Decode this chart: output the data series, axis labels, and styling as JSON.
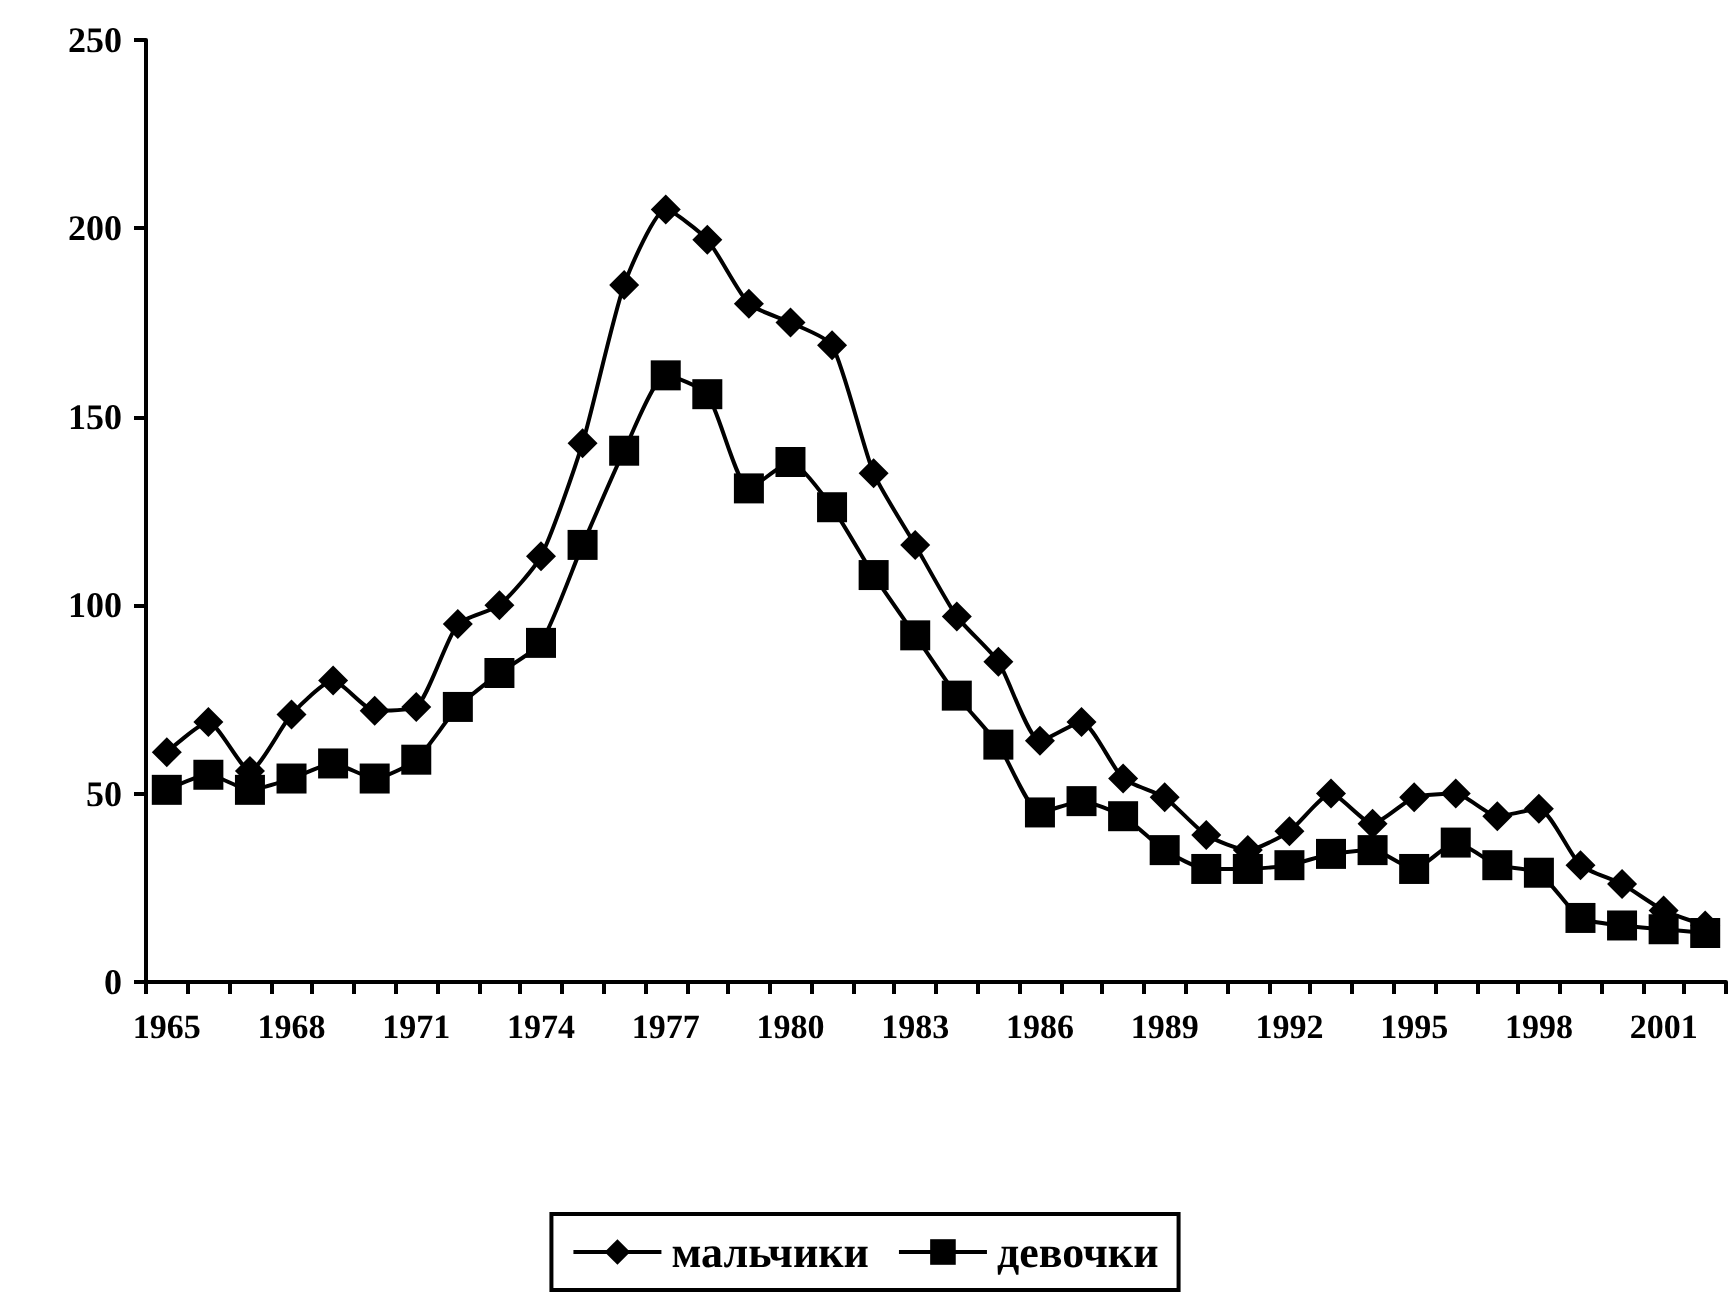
{
  "chart_data": {
    "type": "line",
    "categories": [
      "1965",
      null,
      null,
      "1968",
      null,
      null,
      "1971",
      null,
      null,
      "1974",
      null,
      null,
      "1977",
      null,
      null,
      "1980",
      null,
      null,
      "1983",
      null,
      null,
      "1986",
      null,
      null,
      "1989",
      null,
      null,
      "1992",
      null,
      null,
      "1995",
      null,
      null,
      "1998",
      null,
      null,
      "2001",
      null
    ],
    "series": [
      {
        "name": "мальчики",
        "color": "#000000",
        "marker": "diamond",
        "values": [
          61,
          69,
          56,
          71,
          80,
          72,
          73,
          95,
          100,
          113,
          143,
          185,
          205,
          197,
          180,
          175,
          169,
          135,
          116,
          97,
          85,
          64,
          69,
          54,
          49,
          39,
          35,
          40,
          50,
          42,
          49,
          50,
          44,
          46,
          31,
          26,
          19,
          15
        ]
      },
      {
        "name": "девочки",
        "color": "#000000",
        "marker": "square",
        "values": [
          51,
          55,
          51,
          54,
          58,
          54,
          59,
          73,
          82,
          90,
          116,
          141,
          161,
          156,
          131,
          138,
          126,
          108,
          92,
          76,
          63,
          45,
          48,
          44,
          35,
          30,
          30,
          31,
          34,
          35,
          30,
          37,
          31,
          29,
          17,
          15,
          14,
          13
        ]
      }
    ],
    "ylim": [
      0,
      250
    ],
    "yticks": [
      0,
      50,
      100,
      150,
      200,
      250
    ],
    "grid": false,
    "legend": "bottom",
    "line_style": "solid"
  }
}
